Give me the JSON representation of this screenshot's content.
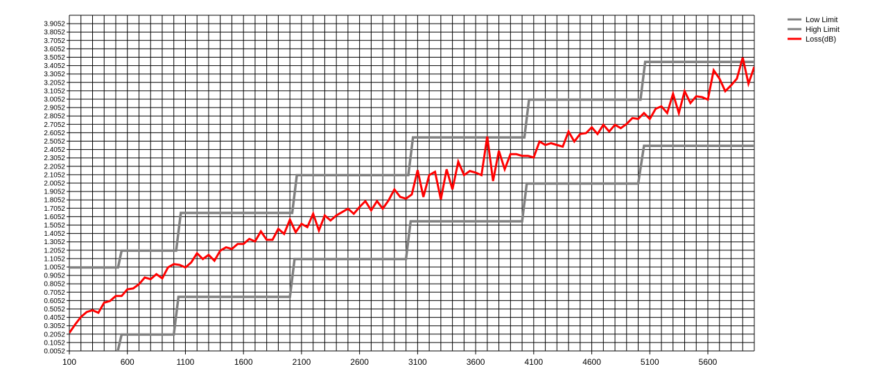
{
  "chart_data": {
    "type": "line",
    "title": "",
    "xlabel": "",
    "ylabel": "",
    "xlim": [
      100,
      6000
    ],
    "ylim": [
      0.0052,
      4.0052
    ],
    "grid": true,
    "legend_position": "top-right",
    "y_ticks": [
      "0.0052",
      "0.1052",
      "0.2052",
      "0.3052",
      "0.4052",
      "0.5052",
      "0.6052",
      "0.7052",
      "0.8052",
      "0.9052",
      "1.0052",
      "1.1052",
      "1.2052",
      "1.3052",
      "1.4052",
      "1.5052",
      "1.6052",
      "1.7052",
      "1.8052",
      "1.9052",
      "2.0052",
      "2.1052",
      "2.2052",
      "2.3052",
      "2.4052",
      "2.5052",
      "2.6052",
      "2.7052",
      "2.8052",
      "2.9052",
      "3.0052",
      "3.1052",
      "3.2052",
      "3.3052",
      "3.4052",
      "3.5052",
      "3.6052",
      "3.7052",
      "3.8052",
      "3.9052"
    ],
    "x_ticks": [
      "100",
      "600",
      "1100",
      "1600",
      "2100",
      "2600",
      "3100",
      "3600",
      "4100",
      "4600",
      "5100",
      "5600"
    ],
    "series": [
      {
        "name": "Low Limit",
        "color": "#808080",
        "x": [
          500,
          550,
          550,
          1000,
          1040,
          1040,
          2000,
          2040,
          2040,
          3000,
          3040,
          3040,
          4000,
          4040,
          4040,
          5000,
          5050,
          5050,
          6000
        ],
        "y": [
          -0.1,
          0.2,
          0.2,
          0.2,
          0.65,
          0.65,
          0.65,
          1.1,
          1.1,
          1.1,
          1.55,
          1.55,
          1.55,
          2.0,
          2.0,
          2.0,
          2.45,
          2.45,
          2.45
        ]
      },
      {
        "name": "High Limit",
        "color": "#808080",
        "x": [
          100,
          520,
          550,
          550,
          1020,
          1060,
          1060,
          2020,
          2060,
          2060,
          3020,
          3060,
          3060,
          4020,
          4060,
          4060,
          5020,
          5060,
          5060,
          6000
        ],
        "y": [
          1.0,
          1.0,
          1.2,
          1.2,
          1.2,
          1.65,
          1.65,
          1.65,
          2.1,
          2.1,
          2.1,
          2.55,
          2.55,
          2.55,
          3.0,
          3.0,
          3.0,
          3.45,
          3.45,
          3.45
        ]
      },
      {
        "name": "Loss(dB)",
        "color": "#ff0000",
        "x": [
          100,
          150,
          200,
          250,
          300,
          350,
          400,
          450,
          500,
          550,
          600,
          650,
          700,
          750,
          800,
          850,
          900,
          950,
          1000,
          1050,
          1100,
          1150,
          1200,
          1250,
          1300,
          1350,
          1400,
          1450,
          1500,
          1550,
          1600,
          1650,
          1700,
          1750,
          1800,
          1850,
          1900,
          1950,
          2000,
          2050,
          2100,
          2150,
          2200,
          2250,
          2300,
          2350,
          2400,
          2450,
          2500,
          2550,
          2600,
          2650,
          2700,
          2750,
          2800,
          2850,
          2900,
          2950,
          3000,
          3050,
          3100,
          3150,
          3200,
          3250,
          3300,
          3350,
          3400,
          3450,
          3500,
          3550,
          3600,
          3650,
          3700,
          3750,
          3800,
          3850,
          3900,
          3950,
          4000,
          4050,
          4100,
          4150,
          4200,
          4250,
          4300,
          4350,
          4400,
          4450,
          4500,
          4550,
          4600,
          4650,
          4700,
          4750,
          4800,
          4850,
          4900,
          4950,
          5000,
          5050,
          5100,
          5150,
          5200,
          5250,
          5300,
          5350,
          5400,
          5450,
          5500,
          5550,
          5600,
          5650,
          5700,
          5750,
          5800,
          5850,
          5900,
          5950,
          6000
        ],
        "y": [
          0.22,
          0.32,
          0.41,
          0.47,
          0.49,
          0.46,
          0.58,
          0.6,
          0.66,
          0.66,
          0.74,
          0.75,
          0.8,
          0.88,
          0.86,
          0.92,
          0.87,
          1.0,
          1.04,
          1.03,
          1.0,
          1.06,
          1.17,
          1.1,
          1.15,
          1.08,
          1.2,
          1.24,
          1.22,
          1.28,
          1.28,
          1.34,
          1.31,
          1.43,
          1.33,
          1.33,
          1.46,
          1.4,
          1.57,
          1.42,
          1.52,
          1.48,
          1.64,
          1.44,
          1.62,
          1.56,
          1.62,
          1.66,
          1.7,
          1.64,
          1.72,
          1.79,
          1.68,
          1.79,
          1.7,
          1.8,
          1.93,
          1.84,
          1.82,
          1.87,
          2.16,
          1.84,
          2.1,
          2.14,
          1.81,
          2.17,
          1.93,
          2.26,
          2.1,
          2.15,
          2.13,
          2.1,
          2.56,
          2.03,
          2.39,
          2.17,
          2.35,
          2.35,
          2.33,
          2.33,
          2.31,
          2.5,
          2.46,
          2.48,
          2.46,
          2.44,
          2.62,
          2.5,
          2.59,
          2.6,
          2.67,
          2.59,
          2.7,
          2.62,
          2.7,
          2.66,
          2.71,
          2.78,
          2.77,
          2.84,
          2.77,
          2.89,
          2.92,
          2.84,
          3.07,
          2.84,
          3.1,
          2.96,
          3.04,
          3.03,
          3.0,
          3.35,
          3.25,
          3.1,
          3.17,
          3.25,
          3.5,
          3.19,
          3.39
        ]
      }
    ]
  }
}
